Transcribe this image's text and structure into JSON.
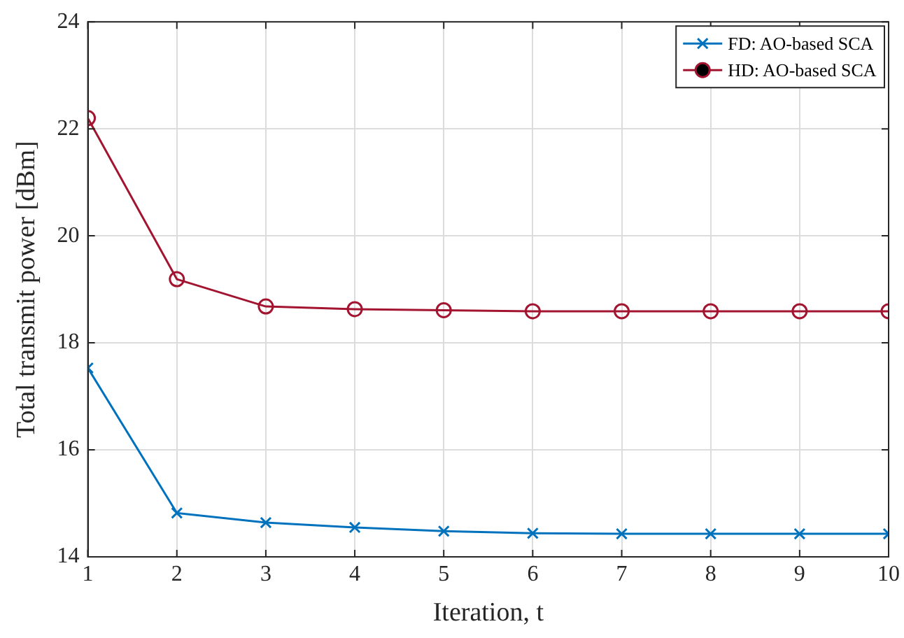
{
  "chart_data": {
    "type": "line",
    "xlabel": "Iteration, t",
    "ylabel": "Total transmit power [dBm]",
    "x": [
      1,
      2,
      3,
      4,
      5,
      6,
      7,
      8,
      9,
      10
    ],
    "series": [
      {
        "name": "FD: AO-based SCA",
        "color": "#0072bd",
        "marker": "cross",
        "values": [
          17.53,
          14.82,
          14.64,
          14.55,
          14.48,
          14.44,
          14.43,
          14.43,
          14.43,
          14.43
        ]
      },
      {
        "name": "HD: AO-based SCA",
        "color": "#a2142f",
        "marker": "circle",
        "values": [
          22.2,
          19.19,
          18.68,
          18.63,
          18.61,
          18.59,
          18.59,
          18.59,
          18.59,
          18.59
        ]
      }
    ],
    "xlim": [
      1,
      10
    ],
    "xticks": [
      1,
      2,
      3,
      4,
      5,
      6,
      7,
      8,
      9,
      10
    ],
    "ylim": [
      14,
      24
    ],
    "yticks": [
      14,
      16,
      18,
      20,
      22,
      24
    ],
    "grid": true,
    "legend": "top right",
    "line_style": "solid"
  }
}
